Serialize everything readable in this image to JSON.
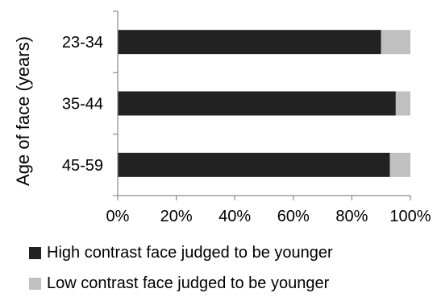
{
  "chart_data": {
    "type": "bar",
    "orientation": "horizontal",
    "stacked": true,
    "ylabel": "Age of face (years)",
    "xlabel": "",
    "categories": [
      "23-34",
      "35-44",
      "45-59"
    ],
    "series": [
      {
        "name": "High contrast face judged to be younger",
        "values": [
          90,
          95,
          93
        ],
        "color": "#222222"
      },
      {
        "name": "Low contrast face judged to be younger",
        "values": [
          10,
          5,
          7
        ],
        "color": "#c0c0c0"
      }
    ],
    "xlim": [
      0,
      100
    ],
    "xticks": [
      "0%",
      "20%",
      "40%",
      "60%",
      "80%",
      "100%"
    ],
    "grid": false,
    "legend_position": "bottom"
  }
}
